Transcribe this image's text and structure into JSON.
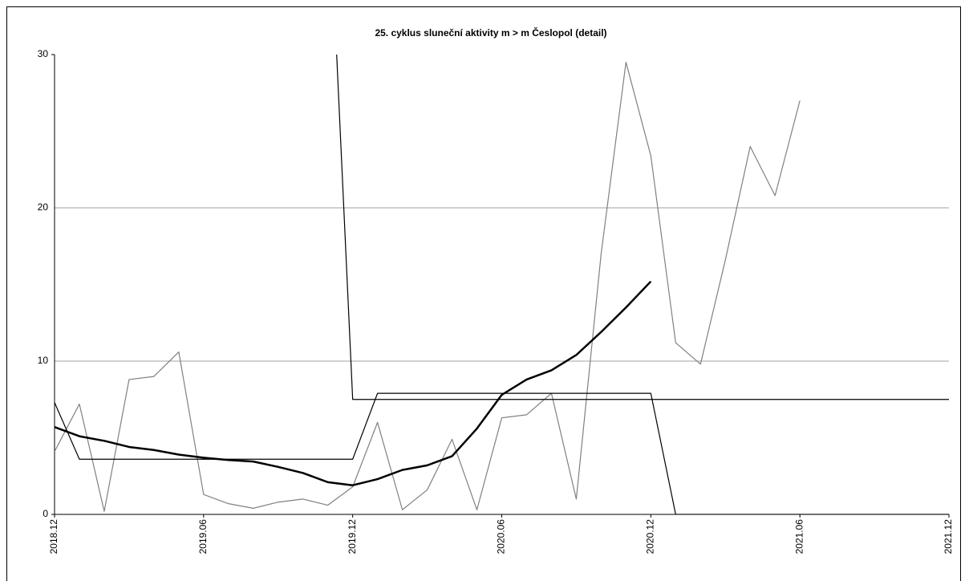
{
  "chart_data": {
    "type": "line",
    "title": "25. cyklus sluneční aktivity m > m Česlopol (detail)",
    "categories": [
      "2018.12",
      null,
      null,
      null,
      null,
      null,
      "2019.06",
      null,
      null,
      null,
      null,
      null,
      "2019.12",
      null,
      null,
      null,
      null,
      null,
      "2020.06",
      null,
      null,
      null,
      null,
      null,
      "2020.12",
      null,
      null,
      null,
      null,
      null,
      "2021.06",
      null,
      null,
      null,
      null,
      null,
      "2021.12"
    ],
    "series": [
      {
        "color": "#808080",
        "width": 1.2,
        "values": [
          4.1,
          7.2,
          0.2,
          8.8,
          9.0,
          10.6,
          1.3,
          0.7,
          0.4,
          0.8,
          1.0,
          0.6,
          1.8,
          6.0,
          0.3,
          1.6,
          4.9,
          0.3,
          6.3,
          6.5,
          7.9,
          1.0,
          17.0,
          29.5,
          23.4,
          11.2,
          9.8,
          16.6,
          24.0,
          20.8,
          27.0,
          null,
          null,
          null,
          null,
          null,
          null
        ]
      },
      {
        "color": "#000000",
        "width": 2.5,
        "values": [
          5.7,
          5.1,
          4.8,
          4.4,
          4.2,
          3.9,
          3.7,
          3.55,
          3.45,
          3.1,
          2.7,
          2.1,
          1.9,
          2.3,
          2.9,
          3.2,
          3.8,
          5.6,
          7.8,
          8.8,
          9.4,
          10.4,
          11.9,
          13.5,
          15.2,
          null,
          null,
          null,
          null,
          null,
          null,
          null,
          null,
          null,
          null,
          null,
          null
        ]
      },
      {
        "color": "#000000",
        "width": 1.2,
        "values": [
          7.3,
          3.6,
          3.6,
          3.6,
          3.6,
          3.6,
          3.6,
          3.6,
          3.6,
          3.6,
          3.6,
          3.6,
          3.6,
          7.9,
          7.9,
          7.9,
          7.9,
          7.9,
          7.9,
          7.9,
          7.9,
          7.9,
          7.9,
          7.9,
          7.9,
          0,
          0,
          0,
          0,
          0,
          0,
          0,
          0,
          0,
          0,
          0,
          0
        ]
      },
      {
        "color": "#000000",
        "width": 1.2,
        "values": [
          null,
          null,
          null,
          null,
          null,
          null,
          null,
          null,
          null,
          null,
          null,
          42.4,
          7.5,
          7.5,
          7.5,
          7.5,
          7.5,
          7.5,
          7.5,
          7.5,
          7.5,
          7.5,
          7.5,
          7.5,
          7.5,
          7.5,
          7.5,
          7.5,
          7.5,
          7.5,
          7.5,
          7.5,
          7.5,
          7.5,
          7.5,
          7.5,
          7.5
        ]
      }
    ],
    "ylim": [
      0,
      30
    ],
    "yticks": [
      0,
      10,
      20,
      30
    ],
    "grid": true
  }
}
